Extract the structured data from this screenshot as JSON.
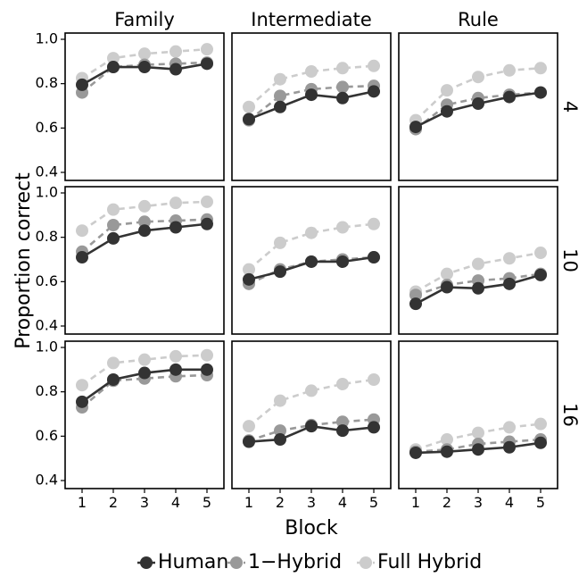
{
  "chart_data": {
    "type": "line",
    "xlabel": "Block",
    "ylabel": "Proportion correct",
    "x": [
      1,
      2,
      3,
      4,
      5
    ],
    "ylim": [
      0.4,
      1.0
    ],
    "yticks": [
      "0.4",
      "0.6",
      "0.8",
      "1.0"
    ],
    "xticks": [
      "1",
      "2",
      "3",
      "4",
      "5"
    ],
    "grid": false,
    "legend_position": "bottom",
    "columns": [
      "Family",
      "Intermediate",
      "Rule"
    ],
    "rows": [
      "4",
      "10",
      "16"
    ],
    "series_styles": [
      {
        "name": "Human",
        "color": "#333333",
        "dashed": false
      },
      {
        "name": "1−Hybrid",
        "color": "#999999",
        "dashed": true
      },
      {
        "name": "Full Hybrid",
        "color": "#cccccc",
        "dashed": true
      }
    ],
    "panels": [
      {
        "column": "Family",
        "row": "4",
        "series": [
          {
            "name": "Human",
            "values": [
              0.795,
              0.875,
              0.875,
              0.865,
              0.89
            ]
          },
          {
            "name": "1−Hybrid",
            "values": [
              0.76,
              0.875,
              0.885,
              0.89,
              0.895
            ]
          },
          {
            "name": "Full Hybrid",
            "values": [
              0.825,
              0.915,
              0.935,
              0.945,
              0.955
            ]
          }
        ]
      },
      {
        "column": "Intermediate",
        "row": "4",
        "series": [
          {
            "name": "Human",
            "values": [
              0.64,
              0.695,
              0.75,
              0.735,
              0.765
            ]
          },
          {
            "name": "1−Hybrid",
            "values": [
              0.635,
              0.745,
              0.775,
              0.785,
              0.79
            ]
          },
          {
            "name": "Full Hybrid",
            "values": [
              0.695,
              0.82,
              0.855,
              0.87,
              0.88
            ]
          }
        ]
      },
      {
        "column": "Rule",
        "row": "4",
        "series": [
          {
            "name": "Human",
            "values": [
              0.605,
              0.675,
              0.71,
              0.74,
              0.76
            ]
          },
          {
            "name": "1−Hybrid",
            "values": [
              0.595,
              0.705,
              0.735,
              0.75,
              0.76
            ]
          },
          {
            "name": "Full Hybrid",
            "values": [
              0.635,
              0.77,
              0.83,
              0.86,
              0.87
            ]
          }
        ]
      },
      {
        "column": "Family",
        "row": "10",
        "series": [
          {
            "name": "Human",
            "values": [
              0.71,
              0.795,
              0.83,
              0.845,
              0.86
            ]
          },
          {
            "name": "1−Hybrid",
            "values": [
              0.735,
              0.855,
              0.87,
              0.875,
              0.88
            ]
          },
          {
            "name": "Full Hybrid",
            "values": [
              0.83,
              0.925,
              0.94,
              0.955,
              0.96
            ]
          }
        ]
      },
      {
        "column": "Intermediate",
        "row": "10",
        "series": [
          {
            "name": "Human",
            "values": [
              0.61,
              0.645,
              0.69,
              0.69,
              0.71
            ]
          },
          {
            "name": "1−Hybrid",
            "values": [
              0.59,
              0.655,
              0.69,
              0.7,
              0.71
            ]
          },
          {
            "name": "Full Hybrid",
            "values": [
              0.655,
              0.775,
              0.82,
              0.845,
              0.86
            ]
          }
        ]
      },
      {
        "column": "Rule",
        "row": "10",
        "series": [
          {
            "name": "Human",
            "values": [
              0.5,
              0.575,
              0.57,
              0.59,
              0.63
            ]
          },
          {
            "name": "1−Hybrid",
            "values": [
              0.54,
              0.585,
              0.605,
              0.615,
              0.635
            ]
          },
          {
            "name": "Full Hybrid",
            "values": [
              0.555,
              0.635,
              0.68,
              0.705,
              0.73
            ]
          }
        ]
      },
      {
        "column": "Family",
        "row": "16",
        "series": [
          {
            "name": "Human",
            "values": [
              0.755,
              0.855,
              0.885,
              0.9,
              0.9
            ]
          },
          {
            "name": "1−Hybrid",
            "values": [
              0.73,
              0.85,
              0.86,
              0.87,
              0.875
            ]
          },
          {
            "name": "Full Hybrid",
            "values": [
              0.83,
              0.93,
              0.945,
              0.96,
              0.965
            ]
          }
        ]
      },
      {
        "column": "Intermediate",
        "row": "16",
        "series": [
          {
            "name": "Human",
            "values": [
              0.575,
              0.585,
              0.645,
              0.625,
              0.64
            ]
          },
          {
            "name": "1−Hybrid",
            "values": [
              0.58,
              0.625,
              0.65,
              0.665,
              0.675
            ]
          },
          {
            "name": "Full Hybrid",
            "values": [
              0.645,
              0.76,
              0.805,
              0.835,
              0.855
            ]
          }
        ]
      },
      {
        "column": "Rule",
        "row": "16",
        "series": [
          {
            "name": "Human",
            "values": [
              0.525,
              0.53,
              0.54,
              0.55,
              0.57
            ]
          },
          {
            "name": "1−Hybrid",
            "values": [
              0.53,
              0.54,
              0.565,
              0.575,
              0.585
            ]
          },
          {
            "name": "Full Hybrid",
            "values": [
              0.54,
              0.585,
              0.615,
              0.64,
              0.655
            ]
          }
        ]
      }
    ]
  }
}
